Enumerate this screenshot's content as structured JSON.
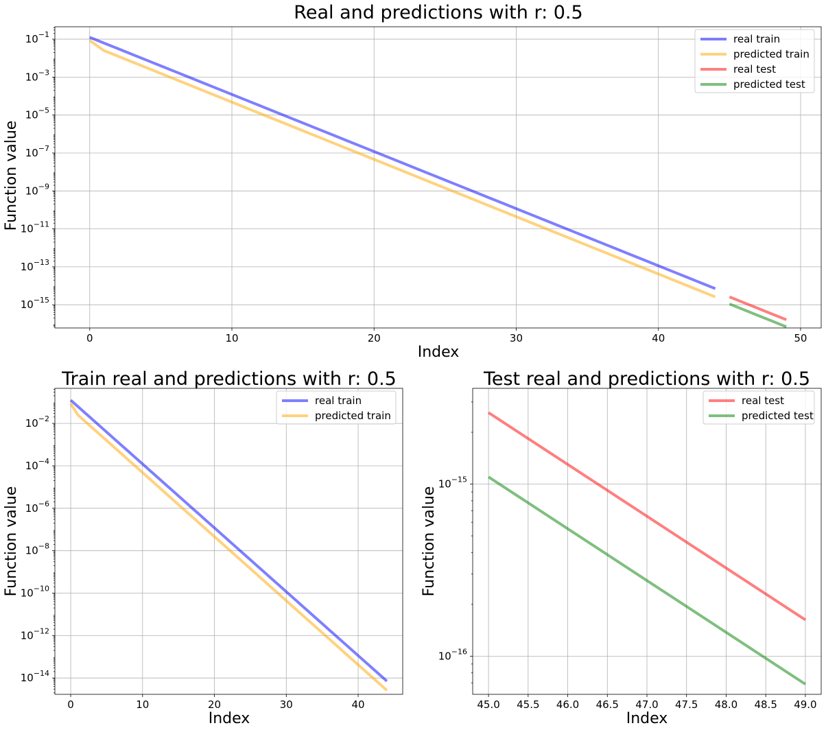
{
  "colors": {
    "real_train": "#0000ff",
    "predicted_train": "#ffa500",
    "real_test": "#ff0000",
    "predicted_test": "#008000"
  },
  "chart_data": [
    {
      "type": "line",
      "title": "Real and predictions with r: 0.5",
      "xlabel": "Index",
      "ylabel": "Function value",
      "yscale": "log",
      "xlim": [
        -2.45,
        51.45
      ],
      "ylim": [
        6e-17,
        0.45
      ],
      "xticks": [
        0,
        10,
        20,
        30,
        40,
        50
      ],
      "xtick_labels": [
        "0",
        "10",
        "20",
        "30",
        "40",
        "50"
      ],
      "yticks": [
        1e-15,
        1e-13,
        1e-11,
        1e-09,
        1e-07,
        1e-05,
        0.001,
        0.1
      ],
      "ytick_labels": [
        {
          "base": "10",
          "exp": "−15"
        },
        {
          "base": "10",
          "exp": "−13"
        },
        {
          "base": "10",
          "exp": "−11"
        },
        {
          "base": "10",
          "exp": "−9"
        },
        {
          "base": "10",
          "exp": "−7"
        },
        {
          "base": "10",
          "exp": "−5"
        },
        {
          "base": "10",
          "exp": "−3"
        },
        {
          "base": "10",
          "exp": "−1"
        }
      ],
      "grid": true,
      "legend": "top-right",
      "series": [
        {
          "name": "real train",
          "color_key": "real_train",
          "x_range": [
            0,
            44
          ],
          "form": "geometric",
          "start": 0.125,
          "ratio": 0.5
        },
        {
          "name": "predicted train",
          "color_key": "predicted_train",
          "x_range": [
            0,
            44
          ],
          "form": "points",
          "points": [
            [
              0,
              0.085
            ],
            [
              1,
              0.025
            ],
            [
              2,
              0.0125
            ],
            [
              44,
              2.6e-15
            ]
          ]
        },
        {
          "name": "real test",
          "color_key": "real_test",
          "x_range": [
            45,
            49
          ],
          "form": "geometric",
          "start": 2.6e-15,
          "ratio": 0.5
        },
        {
          "name": "predicted test",
          "color_key": "predicted_test",
          "x_range": [
            45,
            49
          ],
          "form": "geometric",
          "start": 1.1e-15,
          "ratio": 0.5
        }
      ]
    },
    {
      "type": "line",
      "title": "Train real and predictions with r: 0.5",
      "xlabel": "Index",
      "ylabel": "Function value",
      "yscale": "log",
      "xlim": [
        -2.2,
        46.2
      ],
      "ylim": [
        1.7e-15,
        0.45
      ],
      "xticks": [
        0,
        10,
        20,
        30,
        40
      ],
      "xtick_labels": [
        "0",
        "10",
        "20",
        "30",
        "40"
      ],
      "yticks": [
        1e-14,
        1e-12,
        1e-10,
        1e-08,
        1e-06,
        0.0001,
        0.01
      ],
      "ytick_labels": [
        {
          "base": "10",
          "exp": "−14"
        },
        {
          "base": "10",
          "exp": "−12"
        },
        {
          "base": "10",
          "exp": "−10"
        },
        {
          "base": "10",
          "exp": "−8"
        },
        {
          "base": "10",
          "exp": "−6"
        },
        {
          "base": "10",
          "exp": "−4"
        },
        {
          "base": "10",
          "exp": "−2"
        }
      ],
      "grid": true,
      "legend": "top-right",
      "series": [
        {
          "name": "real train",
          "color_key": "real_train",
          "x_range": [
            0,
            44
          ],
          "form": "geometric",
          "start": 0.125,
          "ratio": 0.5
        },
        {
          "name": "predicted train",
          "color_key": "predicted_train",
          "x_range": [
            0,
            44
          ],
          "form": "points",
          "points": [
            [
              0,
              0.085
            ],
            [
              1,
              0.025
            ],
            [
              2,
              0.0125
            ],
            [
              44,
              2.6e-15
            ]
          ]
        }
      ]
    },
    {
      "type": "line",
      "title": "Test real and predictions with r: 0.5",
      "xlabel": "Index",
      "ylabel": "Function value",
      "yscale": "log",
      "xlim": [
        44.8,
        49.2
      ],
      "ylim": [
        6e-17,
        3.6e-15
      ],
      "xticks": [
        45.0,
        45.5,
        46.0,
        46.5,
        47.0,
        47.5,
        48.0,
        48.5,
        49.0
      ],
      "xtick_labels": [
        "45.0",
        "45.5",
        "46.0",
        "46.5",
        "47.0",
        "47.5",
        "48.0",
        "48.5",
        "49.0"
      ],
      "yticks": [
        1e-16,
        1e-15
      ],
      "ytick_labels": [
        {
          "base": "10",
          "exp": "−16"
        },
        {
          "base": "10",
          "exp": "−15"
        }
      ],
      "grid": true,
      "legend": "top-right",
      "series": [
        {
          "name": "real test",
          "color_key": "real_test",
          "x_range": [
            45,
            49
          ],
          "form": "geometric",
          "start": 2.6e-15,
          "ratio": 0.5
        },
        {
          "name": "predicted test",
          "color_key": "predicted_test",
          "x_range": [
            45,
            49
          ],
          "form": "geometric",
          "start": 1.1e-15,
          "ratio": 0.5
        }
      ]
    }
  ]
}
